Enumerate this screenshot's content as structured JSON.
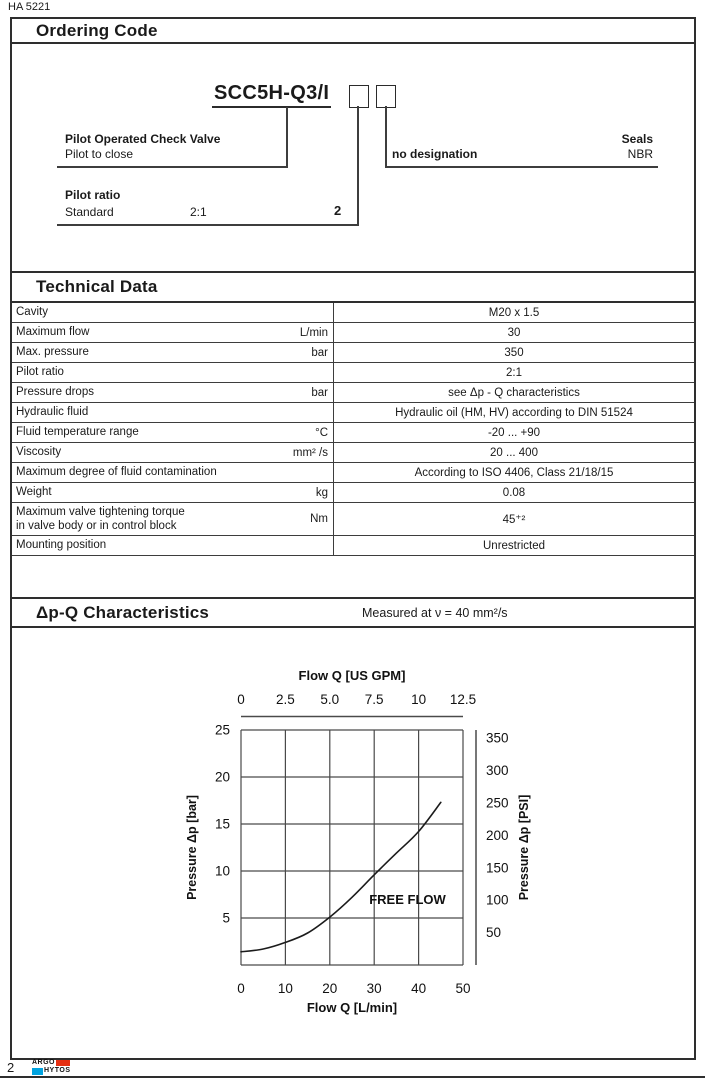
{
  "page": {
    "doc_code": "HA 5221",
    "page_number": "2",
    "brand": {
      "line1": "ARGO",
      "line2": "HYTOS",
      "red": "#e53012",
      "blue": "#00a3e0"
    }
  },
  "sections": {
    "ordering": {
      "title": "Ordering Code",
      "code": "SCC5H-Q3/I",
      "left_block": {
        "title": "Pilot Operated Check Valve",
        "subtitle": "Pilot to close"
      },
      "ratio_block": {
        "title": "Pilot ratio",
        "row_label": "Standard",
        "row_value": "2:1",
        "row_code": "2"
      },
      "seals_block": {
        "title": "Seals",
        "row_label": "no designation",
        "row_value": "NBR"
      }
    },
    "technical": {
      "title": "Technical Data",
      "rows": [
        {
          "param": "Cavity",
          "unit": "",
          "value": "M20 x 1.5"
        },
        {
          "param": "Maximum flow",
          "unit": "L/min",
          "value": "30"
        },
        {
          "param": "Max. pressure",
          "unit": "bar",
          "value": "350"
        },
        {
          "param": "Pilot ratio",
          "unit": "",
          "value": "2:1"
        },
        {
          "param": "Pressure drops",
          "unit": "bar",
          "value": "see Δp - Q characteristics"
        },
        {
          "param": "Hydraulic fluid",
          "unit": "",
          "value": "Hydraulic oil (HM, HV) according to DIN 51524"
        },
        {
          "param": "Fluid temperature range",
          "unit": "°C",
          "value": "-20 ... +90"
        },
        {
          "param": "Viscosity",
          "unit": "mm² /s",
          "value": "20 ... 400"
        },
        {
          "param": "Maximum degree of fluid contamination",
          "unit": "",
          "value": "According to ISO 4406, Class 21/18/15"
        },
        {
          "param": "Weight",
          "unit": "kg",
          "value": "0.08"
        },
        {
          "param": "Maximum valve tightening torque\nin valve body or in control block",
          "unit": "Nm",
          "value": "45⁺²",
          "tall": true
        },
        {
          "param": "Mounting position",
          "unit": "",
          "value": "Unrestricted"
        }
      ]
    },
    "characteristics": {
      "title": "Δp-Q Characteristics",
      "subtitle": "Measured at  ν = 40 mm²/s"
    }
  },
  "chart_data": {
    "type": "line",
    "title_top": "Flow Q [US GPM]",
    "xlabel_bottom": "Flow Q [L/min]",
    "ylabel_left": "Pressure Δp [bar]",
    "ylabel_right": "Pressure Δp [PSI]",
    "xlim": [
      0,
      50
    ],
    "ylim": [
      0,
      25
    ],
    "x_ticks_bottom": [
      "0",
      "10",
      "20",
      "30",
      "40",
      "50"
    ],
    "x_ticks_top": [
      "0",
      "2.5",
      "5.0",
      "7.5",
      "10",
      "12.5"
    ],
    "y_ticks_left": [
      25,
      20,
      15,
      10,
      5
    ],
    "y_ticks_right": [
      350,
      300,
      250,
      200,
      150,
      100,
      50
    ],
    "psi_per_bar": 14.504,
    "grid": true,
    "annotation": {
      "text": "FREE FLOW",
      "x": 37.5,
      "y": 6.9
    },
    "series": [
      {
        "name": "free flow",
        "x": [
          0,
          5,
          10,
          15,
          20,
          25,
          30,
          35,
          40,
          45
        ],
        "y": [
          1.4,
          1.7,
          2.4,
          3.4,
          5.1,
          7.2,
          9.6,
          11.9,
          14.2,
          17.3
        ]
      }
    ]
  }
}
